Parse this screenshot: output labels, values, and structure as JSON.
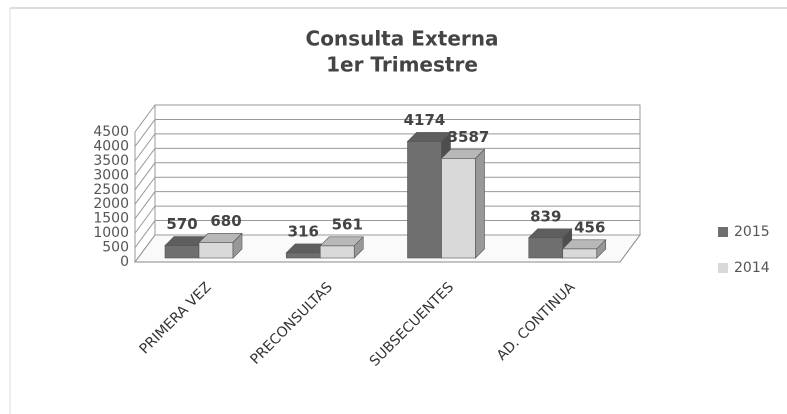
{
  "chart_data": {
    "type": "bar3d",
    "title": "Consulta Externa",
    "subtitle": "1er Trimestre",
    "categories": [
      "PRIMERA VEZ",
      "PRECONSULTAS",
      "SUBSECUENTES",
      "AD. CONTINUA"
    ],
    "series": [
      {
        "name": "2015",
        "color": "#6f6f6f",
        "values": [
          570,
          316,
          4174,
          839
        ]
      },
      {
        "name": "2014",
        "color": "#d9d9d9",
        "values": [
          680,
          561,
          3587,
          456
        ]
      }
    ],
    "ylim": [
      0,
      4500
    ],
    "yticks": [
      0,
      500,
      1000,
      1500,
      2000,
      2500,
      3000,
      3500,
      4000,
      4500
    ],
    "grid": true,
    "legend": "right"
  }
}
